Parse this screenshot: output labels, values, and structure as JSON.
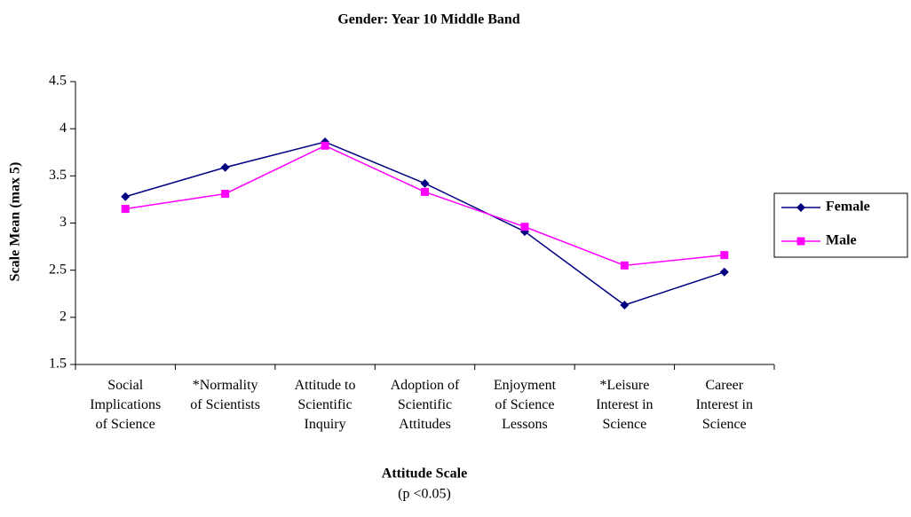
{
  "chart_data": {
    "type": "line",
    "title": "Gender: Year 10 Middle Band",
    "xlabel": "Attitude Scale",
    "note": "(p <0.05)",
    "ylabel": "Scale Mean (max 5)",
    "categories": [
      "Social\nImplications\nof Science",
      "*Normality\nof Scientists",
      "Attitude to\nScientific\nInquiry",
      "Adoption of\nScientific\nAttitudes",
      "Enjoyment\nof Science\nLessons",
      "*Leisure\nInterest in\nScience",
      "Career\nInterest in\nScience"
    ],
    "series": [
      {
        "name": "Female",
        "color": "#000080",
        "marker": "diamond",
        "values": [
          3.28,
          3.59,
          3.86,
          3.42,
          2.91,
          2.13,
          2.48
        ]
      },
      {
        "name": "Male",
        "color": "#ff00ff",
        "marker": "square",
        "values": [
          3.15,
          3.31,
          3.82,
          3.33,
          2.96,
          2.55,
          2.66
        ]
      }
    ],
    "ylim": [
      1.5,
      4.5
    ],
    "yticks": [
      1.5,
      2,
      2.5,
      3,
      3.5,
      4,
      4.5
    ],
    "grid": false,
    "legend": "right"
  }
}
